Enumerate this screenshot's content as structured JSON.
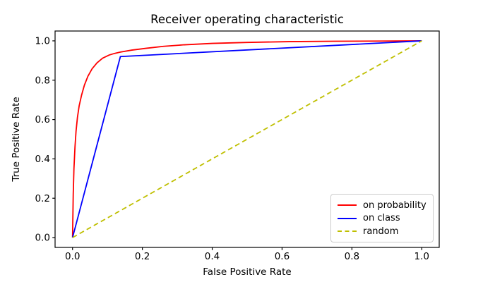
{
  "window": {
    "background": "#ffffff",
    "frame_color": "#000000"
  },
  "chart_data": {
    "type": "line",
    "title": "Receiver operating characteristic",
    "xlabel": "False Positive Rate",
    "ylabel": "True Positive Rate",
    "xlim": [
      -0.05,
      1.05
    ],
    "ylim": [
      -0.05,
      1.05
    ],
    "x_ticks": [
      0.0,
      0.2,
      0.4,
      0.6,
      0.8,
      1.0
    ],
    "y_ticks": [
      0.0,
      0.2,
      0.4,
      0.6,
      0.8,
      1.0
    ],
    "grid": false,
    "legend_position": "lower right",
    "series": [
      {
        "name": "on probability",
        "color": "#ff0000",
        "style": "solid",
        "points": [
          [
            0,
            0
          ],
          [
            0.002,
            0.22
          ],
          [
            0.004,
            0.35
          ],
          [
            0.007,
            0.46
          ],
          [
            0.01,
            0.54
          ],
          [
            0.014,
            0.61
          ],
          [
            0.019,
            0.67
          ],
          [
            0.026,
            0.725
          ],
          [
            0.034,
            0.775
          ],
          [
            0.044,
            0.82
          ],
          [
            0.056,
            0.858
          ],
          [
            0.07,
            0.888
          ],
          [
            0.086,
            0.912
          ],
          [
            0.105,
            0.928
          ],
          [
            0.12,
            0.936
          ],
          [
            0.137,
            0.943
          ],
          [
            0.17,
            0.953
          ],
          [
            0.21,
            0.962
          ],
          [
            0.26,
            0.972
          ],
          [
            0.32,
            0.98
          ],
          [
            0.4,
            0.987
          ],
          [
            0.5,
            0.992
          ],
          [
            0.62,
            0.996
          ],
          [
            0.75,
            0.998
          ],
          [
            0.88,
            0.999
          ],
          [
            1.0,
            1.0
          ]
        ]
      },
      {
        "name": "on class",
        "color": "#0000ff",
        "style": "solid",
        "points": [
          [
            0,
            0
          ],
          [
            0.137,
            0.92
          ],
          [
            1,
            1
          ]
        ]
      },
      {
        "name": "random",
        "color": "#bfbf00",
        "style": "dashed",
        "points": [
          [
            0,
            0
          ],
          [
            1,
            1
          ]
        ]
      }
    ]
  }
}
